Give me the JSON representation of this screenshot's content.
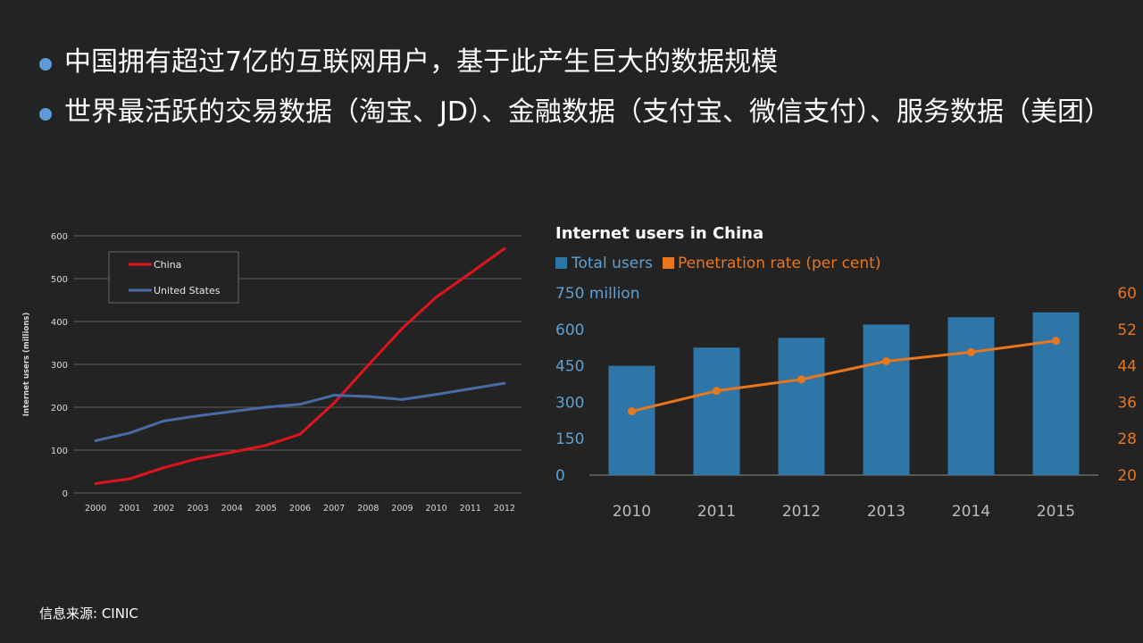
{
  "bullets": [
    "中国拥有超过7亿的互联网用户，基于此产生巨大的数据规模",
    "世界最活跃的交易数据（淘宝、JD）、金融数据（支付宝、微信支付）、服务数据（美团）"
  ],
  "source": "信息来源: CINIC",
  "colors": {
    "china": "#e0141e",
    "us": "#4a6aa5",
    "bar": "#2e75a8",
    "rate": "#e8771e",
    "accent_text": "#5fa0d0"
  },
  "chart_data": [
    {
      "type": "line",
      "title": "",
      "ylabel": "Internet users (millions)",
      "xlabel": "",
      "x": [
        "2000",
        "2001",
        "2002",
        "2003",
        "2004",
        "2005",
        "2006",
        "2007",
        "2008",
        "2009",
        "2010",
        "2011",
        "2012"
      ],
      "yticks": [
        "0",
        "100",
        "200",
        "300",
        "400",
        "500",
        "600"
      ],
      "ylim": [
        0,
        600
      ],
      "grid": true,
      "legend": "top-left",
      "series": [
        {
          "name": "China",
          "values": [
            22,
            33,
            59,
            80,
            95,
            111,
            137,
            210,
            298,
            384,
            457,
            513,
            570
          ]
        },
        {
          "name": "United States",
          "values": [
            122,
            140,
            168,
            180,
            190,
            200,
            207,
            228,
            225,
            218,
            230,
            243,
            256
          ]
        }
      ]
    },
    {
      "type": "bar",
      "title": "Internet users in China",
      "categories": [
        "2010",
        "2011",
        "2012",
        "2013",
        "2014",
        "2015"
      ],
      "series": [
        {
          "name": "Total users",
          "values": [
            450,
            525,
            565,
            620,
            650,
            670
          ]
        },
        {
          "name": "Penetration rate (per cent)",
          "values": [
            34,
            38.5,
            41,
            45,
            47,
            49.5
          ],
          "type": "line",
          "axis": "right"
        }
      ],
      "yticks_left": [
        "0",
        "150",
        "300",
        "450",
        "600",
        "750 million"
      ],
      "yticks_right": [
        "20",
        "28",
        "36",
        "44",
        "52",
        "60"
      ],
      "ylim_left": [
        0,
        750
      ],
      "ylim_right": [
        20,
        60
      ],
      "legend": "top-left"
    }
  ]
}
